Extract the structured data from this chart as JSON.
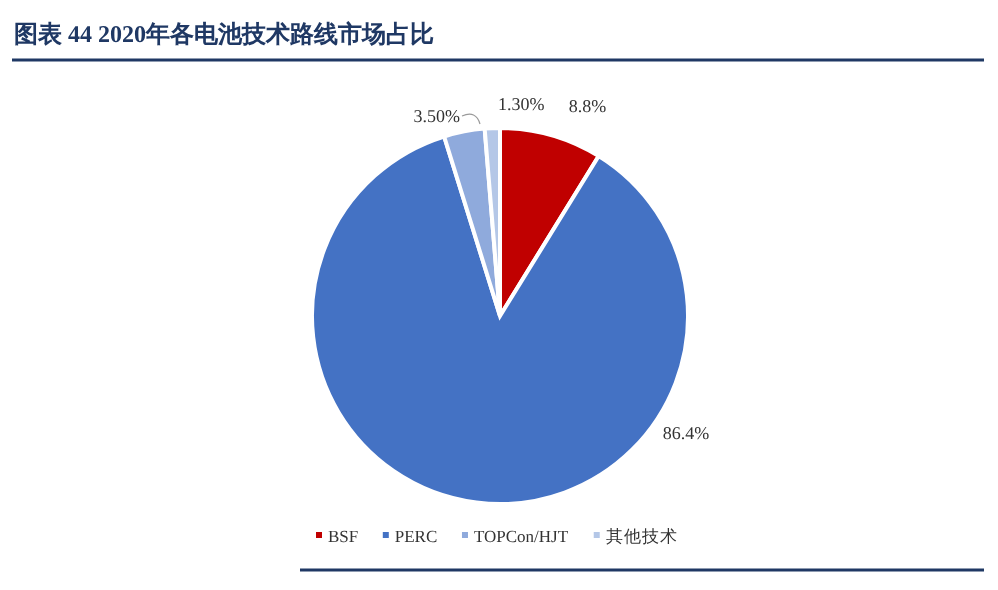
{
  "chart_data": {
    "type": "pie",
    "title": "图表 44  2020年各电池技术路线市场占比",
    "categories": [
      "BSF",
      "PERC",
      "TOPCon/HJT",
      "其他技术"
    ],
    "values": [
      8.8,
      86.4,
      3.5,
      1.3
    ],
    "value_labels": [
      "8.8%",
      "86.4%",
      "3.50%",
      "1.30%"
    ],
    "colors": [
      "#c00000",
      "#4472c4",
      "#8faadc",
      "#b4c7e7"
    ],
    "legend": "bottom"
  }
}
